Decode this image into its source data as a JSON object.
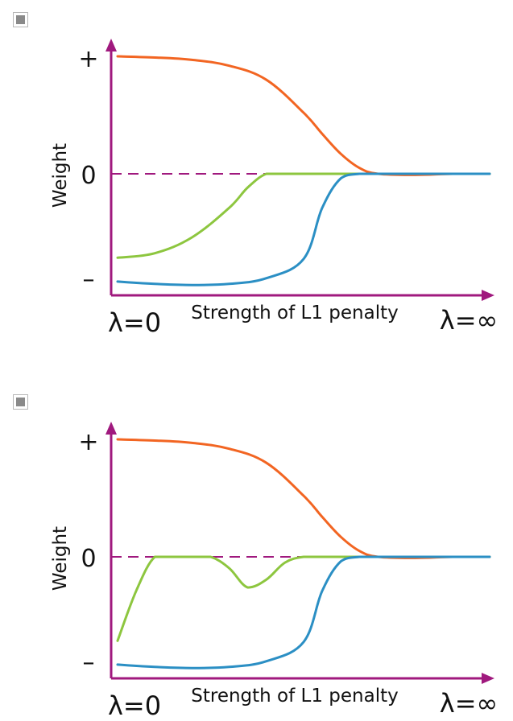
{
  "chart_data": [
    {
      "type": "line",
      "title": "",
      "xlabel": "Strength of L1 penalty",
      "ylabel": "Weight",
      "x_start_label": "λ=0",
      "x_end_label": "λ=∞",
      "y_tick_labels": {
        "positive": "+",
        "zero": "0",
        "negative": "–"
      },
      "xlim": [
        0,
        1
      ],
      "ylim": [
        -1,
        1
      ],
      "zero_line": "dashed",
      "grid": false,
      "legend": "none",
      "series": [
        {
          "color": "#f26522",
          "x": [
            0,
            0.1,
            0.2,
            0.3,
            0.4,
            0.5,
            0.55,
            0.6,
            0.65,
            0.7,
            0.8,
            0.9,
            1
          ],
          "y": [
            1,
            0.99,
            0.97,
            0.92,
            0.8,
            0.52,
            0.34,
            0.17,
            0.05,
            0.0,
            -0.01,
            0.0,
            0.0
          ]
        },
        {
          "color": "#8dc63f",
          "x": [
            0,
            0.1,
            0.2,
            0.3,
            0.35,
            0.4,
            0.45,
            0.5,
            0.6,
            0.8,
            1
          ],
          "y": [
            -0.74,
            -0.7,
            -0.56,
            -0.3,
            -0.12,
            0.0,
            0.0,
            0.0,
            0.0,
            0.0,
            0.0
          ]
        },
        {
          "color": "#2b8fc4",
          "x": [
            0,
            0.1,
            0.2,
            0.3,
            0.4,
            0.5,
            0.55,
            0.6,
            0.65,
            0.7,
            0.8,
            1
          ],
          "y": [
            -0.95,
            -0.97,
            -0.98,
            -0.97,
            -0.92,
            -0.75,
            -0.3,
            -0.04,
            0.0,
            0.0,
            0.0,
            0.0
          ]
        }
      ]
    },
    {
      "type": "line",
      "title": "",
      "xlabel": "Strength of L1 penalty",
      "ylabel": "Weight",
      "x_start_label": "λ=0",
      "x_end_label": "λ=∞",
      "y_tick_labels": {
        "positive": "+",
        "zero": "0",
        "negative": "–"
      },
      "xlim": [
        0,
        1
      ],
      "ylim": [
        -1,
        1
      ],
      "zero_line": "dashed",
      "grid": false,
      "legend": "none",
      "series": [
        {
          "color": "#f26522",
          "x": [
            0,
            0.1,
            0.2,
            0.3,
            0.4,
            0.5,
            0.55,
            0.6,
            0.65,
            0.7,
            0.8,
            0.9,
            1
          ],
          "y": [
            1,
            0.99,
            0.97,
            0.92,
            0.8,
            0.52,
            0.34,
            0.17,
            0.05,
            0.0,
            -0.01,
            0.0,
            0.0
          ]
        },
        {
          "color": "#8dc63f",
          "x": [
            0,
            0.05,
            0.1,
            0.15,
            0.2,
            0.25,
            0.3,
            0.35,
            0.4,
            0.45,
            0.5,
            0.55,
            0.6,
            0.8,
            1
          ],
          "y": [
            -0.74,
            -0.3,
            0.0,
            0.0,
            0.0,
            0.0,
            -0.1,
            -0.27,
            -0.2,
            -0.05,
            0.0,
            0.0,
            0.0,
            0.0,
            0.0
          ]
        },
        {
          "color": "#2b8fc4",
          "x": [
            0,
            0.1,
            0.2,
            0.3,
            0.4,
            0.5,
            0.55,
            0.6,
            0.65,
            0.7,
            0.8,
            1
          ],
          "y": [
            -0.95,
            -0.97,
            -0.98,
            -0.97,
            -0.92,
            -0.75,
            -0.3,
            -0.04,
            0.0,
            0.0,
            0.0,
            0.0
          ]
        }
      ]
    }
  ]
}
